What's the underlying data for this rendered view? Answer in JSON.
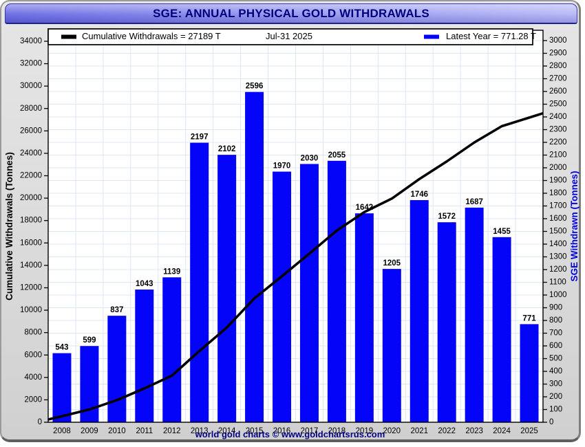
{
  "window": {
    "title": "SGE: ANNUAL PHYSICAL GOLD WITHDRAWALS",
    "footer": "world gold charts © www.goldchartsrus.com"
  },
  "chart_data": {
    "type": "bar",
    "title": "SGE: ANNUAL PHYSICAL GOLD WITHDRAWALS",
    "categories": [
      "2008",
      "2009",
      "2010",
      "2011",
      "2012",
      "2013",
      "2014",
      "2015",
      "2016",
      "2017",
      "2018",
      "2019",
      "2020",
      "2021",
      "2022",
      "2023",
      "2024",
      "2025"
    ],
    "series": [
      {
        "name": "Latest Year",
        "type": "bar",
        "axis": "right",
        "values": [
          543,
          599,
          837,
          1043,
          1139,
          2197,
          2102,
          2596,
          1970,
          2030,
          2055,
          1642,
          1205,
          1746,
          1572,
          1687,
          1455,
          771
        ]
      },
      {
        "name": "Cumulative Withdrawals",
        "type": "line",
        "axis": "left",
        "values": [
          543,
          1142,
          1979,
          3022,
          4161,
          6358,
          8460,
          11056,
          13026,
          15056,
          17111,
          18753,
          19958,
          21704,
          23276,
          24963,
          26418,
          27189
        ]
      }
    ],
    "value_labels_series": 0,
    "left_axis": {
      "label": "Cumulative Withdrawals (Tonnes)",
      "min": 0,
      "max": 34000,
      "tick_step": 2000
    },
    "right_axis": {
      "label": "SGE Withdrawn (Tonnes)",
      "min": 0,
      "max": 3000,
      "tick_step": 100
    },
    "legend": {
      "position": "top",
      "cumulative": "Cumulative Withdrawals = 27189 T",
      "date": "Jul-31  2025",
      "latest": "Latest Year = 771.28 T"
    },
    "grid": true,
    "colors": {
      "bar": "#0404f8",
      "line": "#000000",
      "grid": "#dce6f5",
      "plot_bg": "#ffffff",
      "plot_border": "#000000",
      "tick_label": "#000000",
      "bar_label": "#000000",
      "left_axis_label": "#000000",
      "right_axis_label": "#0000e6",
      "legend_swatch_cumulative": "#000000",
      "legend_swatch_latest": "#0404f8"
    }
  }
}
